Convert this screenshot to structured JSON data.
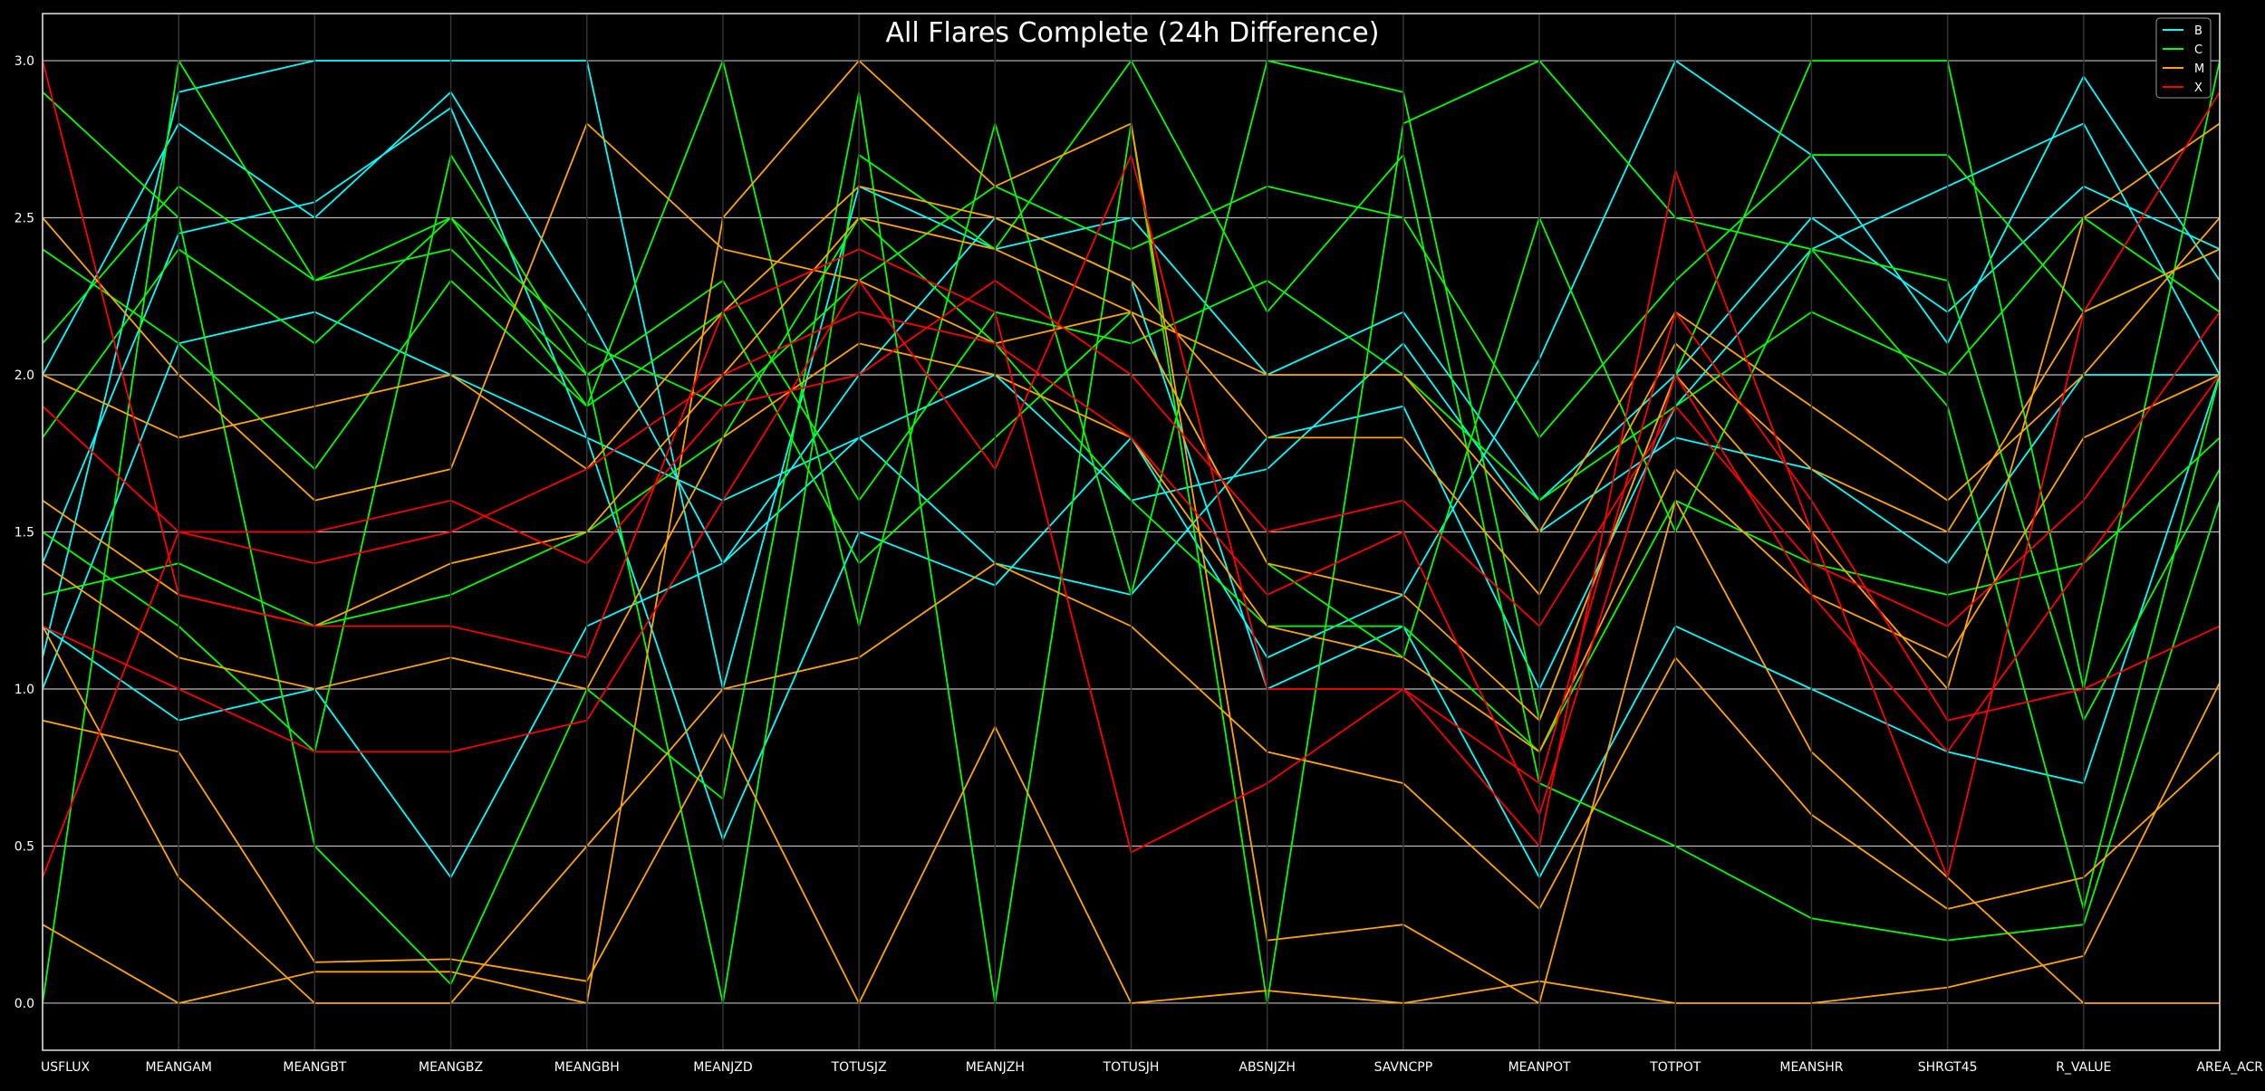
{
  "chart_data": {
    "type": "parallel_coordinates",
    "title": "All Flares Complete (24h Difference)",
    "axes": [
      "USFLUX",
      "MEANGAM",
      "MEANGBT",
      "MEANGBZ",
      "MEANGBH",
      "MEANJZD",
      "TOTUSJZ",
      "MEANJZH",
      "TOTUSJH",
      "ABSNJZH",
      "SAVNCPP",
      "MEANPOT",
      "TOTPOT",
      "MEANSHR",
      "SHRGT45",
      "R_VALUE",
      "AREA_ACR"
    ],
    "y_ticks": [
      "0.0",
      "0.5",
      "1.0",
      "1.5",
      "2.0",
      "2.5",
      "3.0"
    ],
    "ylim": [
      -0.15,
      3.15
    ],
    "grid": true,
    "legend_position": "top-right",
    "series": [
      {
        "name": "B",
        "color": "#00ffff"
      },
      {
        "name": "C",
        "color": "#00ff00"
      },
      {
        "name": "M",
        "color": "#ffa500"
      },
      {
        "name": "X",
        "color": "#ff0000"
      }
    ],
    "lines": [
      {
        "class": "B",
        "values": [
          1.1,
          2.9,
          3.0,
          3.0,
          3.0,
          1.0,
          2.6,
          2.4,
          2.5,
          2.0,
          2.2,
          1.6,
          2.0,
          2.5,
          2.2,
          2.6,
          2.4
        ]
      },
      {
        "class": "B",
        "values": [
          2.0,
          2.8,
          2.5,
          2.9,
          2.2,
          1.4,
          1.8,
          1.4,
          1.3,
          1.8,
          1.9,
          1.0,
          1.9,
          2.4,
          2.6,
          2.8,
          2.0
        ]
      },
      {
        "class": "B",
        "values": [
          1.4,
          2.45,
          2.55,
          2.85,
          1.8,
          0.52,
          1.5,
          1.33,
          1.8,
          1.1,
          1.3,
          2.05,
          3.0,
          2.7,
          2.1,
          2.95,
          2.3
        ]
      },
      {
        "class": "B",
        "values": [
          1.2,
          0.9,
          1.0,
          0.4,
          1.2,
          1.4,
          2.0,
          2.5,
          2.3,
          1.0,
          1.2,
          0.4,
          1.2,
          1.0,
          0.8,
          0.7,
          2.0
        ]
      },
      {
        "class": "B",
        "values": [
          1.0,
          2.1,
          2.2,
          2.0,
          1.8,
          1.6,
          1.8,
          2.0,
          1.6,
          1.7,
          2.1,
          1.5,
          1.8,
          1.7,
          1.4,
          2.0,
          2.0
        ]
      },
      {
        "class": "C",
        "values": [
          0.0,
          3.0,
          2.3,
          2.5,
          1.9,
          3.0,
          1.2,
          2.8,
          1.3,
          3.0,
          2.9,
          0.9,
          2.0,
          3.0,
          3.0,
          1.0,
          3.0
        ]
      },
      {
        "class": "C",
        "values": [
          2.9,
          2.5,
          0.5,
          0.06,
          1.0,
          0.65,
          2.9,
          0.0,
          2.8,
          0.0,
          2.8,
          3.0,
          2.5,
          2.4,
          1.9,
          0.3,
          2.0
        ]
      },
      {
        "class": "C",
        "values": [
          1.5,
          1.2,
          0.8,
          2.7,
          2.0,
          0.0,
          2.7,
          2.4,
          3.0,
          2.2,
          2.7,
          0.7,
          0.5,
          0.27,
          0.2,
          0.25,
          1.6
        ]
      },
      {
        "class": "C",
        "values": [
          2.4,
          2.1,
          1.7,
          2.3,
          1.9,
          2.2,
          1.4,
          1.8,
          2.2,
          1.4,
          1.1,
          2.5,
          1.5,
          2.4,
          2.3,
          0.9,
          1.7
        ]
      },
      {
        "class": "C",
        "values": [
          1.8,
          2.4,
          2.1,
          2.5,
          2.1,
          1.9,
          2.3,
          2.6,
          2.4,
          2.6,
          2.5,
          1.8,
          2.3,
          2.7,
          2.7,
          2.2,
          2.4
        ]
      },
      {
        "class": "C",
        "values": [
          1.3,
          1.4,
          1.2,
          1.3,
          1.5,
          1.8,
          2.5,
          2.1,
          1.6,
          1.2,
          1.2,
          0.8,
          1.6,
          1.4,
          1.3,
          1.4,
          1.8
        ]
      },
      {
        "class": "C",
        "values": [
          2.1,
          2.6,
          2.3,
          2.4,
          2.0,
          2.3,
          1.6,
          2.2,
          2.1,
          2.3,
          2.0,
          1.6,
          1.9,
          2.2,
          2.0,
          2.5,
          2.2
        ]
      },
      {
        "class": "M",
        "values": [
          0.25,
          0.0,
          0.1,
          0.1,
          0.0,
          2.5,
          3.0,
          2.6,
          2.8,
          0.2,
          0.25,
          0.0,
          1.6,
          0.8,
          0.4,
          0.0,
          0.0
        ]
      },
      {
        "class": "M",
        "values": [
          0.9,
          0.8,
          0.13,
          0.14,
          0.07,
          0.86,
          0.0,
          0.88,
          0.0,
          0.04,
          0.0,
          0.07,
          0.0,
          0.0,
          0.05,
          0.15,
          1.02
        ]
      },
      {
        "class": "M",
        "values": [
          2.5,
          2.0,
          1.6,
          1.7,
          2.8,
          2.4,
          2.3,
          2.1,
          2.2,
          2.0,
          2.0,
          1.5,
          2.2,
          1.9,
          1.6,
          2.0,
          2.5
        ]
      },
      {
        "class": "M",
        "values": [
          1.6,
          1.3,
          1.2,
          1.4,
          1.5,
          2.0,
          2.5,
          2.4,
          2.2,
          1.4,
          1.3,
          0.9,
          2.0,
          1.5,
          1.0,
          2.5,
          2.8
        ]
      },
      {
        "class": "M",
        "values": [
          1.2,
          0.4,
          0.0,
          0.0,
          0.5,
          1.0,
          1.1,
          1.4,
          1.2,
          0.8,
          0.7,
          0.3,
          1.1,
          0.6,
          0.3,
          0.4,
          0.8
        ]
      },
      {
        "class": "M",
        "values": [
          2.0,
          1.8,
          1.9,
          2.0,
          1.7,
          2.2,
          2.6,
          2.5,
          2.3,
          1.8,
          1.8,
          1.3,
          2.1,
          1.7,
          1.5,
          2.2,
          2.4
        ]
      },
      {
        "class": "M",
        "values": [
          1.4,
          1.1,
          1.0,
          1.1,
          1.0,
          1.8,
          2.1,
          2.0,
          1.8,
          1.2,
          1.1,
          0.8,
          1.7,
          1.3,
          1.1,
          1.8,
          2.0
        ]
      },
      {
        "class": "X",
        "values": [
          0.4,
          1.5,
          1.4,
          1.5,
          1.7,
          2.0,
          2.2,
          2.1,
          1.8,
          1.3,
          1.5,
          0.6,
          2.0,
          1.3,
          0.8,
          1.4,
          2.0
        ]
      },
      {
        "class": "X",
        "values": [
          3.0,
          1.3,
          1.2,
          1.2,
          1.1,
          2.2,
          2.4,
          2.2,
          0.48,
          0.7,
          1.0,
          0.5,
          2.65,
          1.5,
          0.4,
          2.2,
          2.9
        ]
      },
      {
        "class": "X",
        "values": [
          1.9,
          1.5,
          1.5,
          1.6,
          1.4,
          1.9,
          2.0,
          2.3,
          2.0,
          1.5,
          1.6,
          1.2,
          1.9,
          1.4,
          1.2,
          1.6,
          2.2
        ]
      },
      {
        "class": "X",
        "values": [
          1.2,
          1.0,
          0.8,
          0.8,
          0.9,
          1.6,
          2.3,
          1.7,
          2.7,
          1.0,
          1.0,
          0.7,
          2.2,
          1.6,
          0.9,
          1.0,
          1.2
        ]
      }
    ]
  }
}
